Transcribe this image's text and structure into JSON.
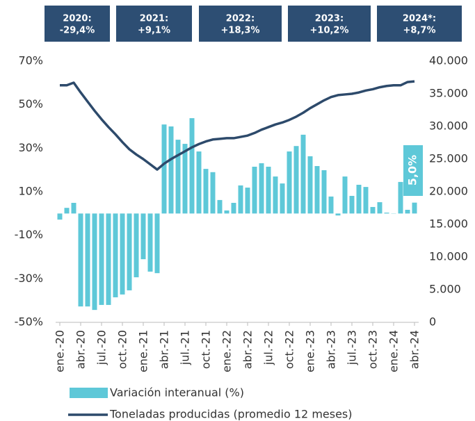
{
  "chart_data": {
    "type": "combo",
    "annotations": [
      {
        "label": "2020:",
        "value": "-29,4%"
      },
      {
        "label": "2021:",
        "value": "+9,1%"
      },
      {
        "label": "2022:",
        "value": "+18,3%"
      },
      {
        "label": "2023:",
        "value": "+10,2%"
      },
      {
        "label": "2024*:",
        "value": "+8,7%"
      }
    ],
    "categories": [
      "ene.-20",
      null,
      null,
      "abr.-20",
      null,
      null,
      "jul.-20",
      null,
      null,
      "oct.-20",
      null,
      null,
      "ene.-21",
      null,
      null,
      "abr.-21",
      null,
      null,
      "jul.-21",
      null,
      null,
      "oct.-21",
      null,
      null,
      "ene.-22",
      null,
      null,
      "abr.-22",
      null,
      null,
      "jul.-22",
      null,
      null,
      "oct.-22",
      null,
      null,
      "ene.-23",
      null,
      null,
      "abr.-23",
      null,
      null,
      "jul.-23",
      null,
      null,
      "oct.-23",
      null,
      null,
      "ene.-24",
      null,
      null,
      "abr.-24"
    ],
    "series": [
      {
        "name": "Variación interanual (%)",
        "type": "bar",
        "axis": "y",
        "color": "#5ec8d8",
        "values": [
          -2.8,
          2.6,
          4.9,
          -42.7,
          -42.7,
          -44.3,
          -42,
          -42,
          -38.5,
          -37.2,
          -35.3,
          -29.3,
          -21,
          -26.7,
          -27.4,
          40.9,
          40,
          33.9,
          32,
          43.8,
          28.5,
          20.5,
          19,
          6.2,
          1.4,
          4.9,
          12.9,
          11.9,
          21.5,
          23.1,
          21.5,
          17,
          13.8,
          28.5,
          31,
          36.2,
          26.3,
          21.8,
          19.9,
          7.8,
          -0.9,
          17,
          8.1,
          13.2,
          12.2,
          3,
          5.2,
          0.4,
          0.1,
          14.5,
          1.7,
          5
        ],
        "value_labels": [
          null,
          null,
          null,
          null,
          null,
          null,
          null,
          null,
          null,
          null,
          null,
          null,
          null,
          null,
          null,
          null,
          null,
          null,
          null,
          null,
          null,
          null,
          null,
          null,
          null,
          null,
          null,
          null,
          null,
          null,
          null,
          null,
          null,
          null,
          null,
          null,
          null,
          null,
          null,
          null,
          null,
          null,
          null,
          null,
          null,
          null,
          null,
          null,
          null,
          null,
          null,
          "5,0%"
        ]
      },
      {
        "name": "Toneladas producidas (promedio 12 meses)",
        "type": "line",
        "axis": "y2",
        "color": "#2d4a6b",
        "values": [
          36300,
          36300,
          36700,
          35200,
          33800,
          32400,
          31100,
          29900,
          28800,
          27600,
          26500,
          25700,
          25000,
          24200,
          23400,
          24300,
          25000,
          25600,
          26200,
          26800,
          27300,
          27700,
          28000,
          28100,
          28200,
          28200,
          28400,
          28600,
          29000,
          29500,
          29900,
          30300,
          30600,
          31000,
          31500,
          32100,
          32800,
          33400,
          34000,
          34500,
          34800,
          34900,
          35000,
          35200,
          35500,
          35700,
          36000,
          36200,
          36300,
          36300,
          36800,
          36900
        ]
      }
    ],
    "ylim": [
      -50,
      70
    ],
    "yticks": [
      {
        "value": -50,
        "label": "-50%"
      },
      {
        "value": -30,
        "label": "-30%"
      },
      {
        "value": -10,
        "label": "-10%"
      },
      {
        "value": 10,
        "label": "10%"
      },
      {
        "value": 30,
        "label": "30%"
      },
      {
        "value": 50,
        "label": "50%"
      },
      {
        "value": 70,
        "label": "70%"
      }
    ],
    "y2lim": [
      0,
      40000
    ],
    "y2ticks": [
      0,
      {
        "value": 5000,
        "label": "5.000"
      },
      {
        "value": 10000,
        "label": "10.000"
      },
      {
        "value": 15000,
        "label": "15.000"
      },
      {
        "value": 20000,
        "label": "20.000"
      },
      {
        "value": 25000,
        "label": "25.000"
      },
      {
        "value": 30000,
        "label": "30.000"
      },
      {
        "value": 35000,
        "label": "35.000"
      },
      {
        "value": 40000,
        "label": "40.000"
      }
    ]
  }
}
